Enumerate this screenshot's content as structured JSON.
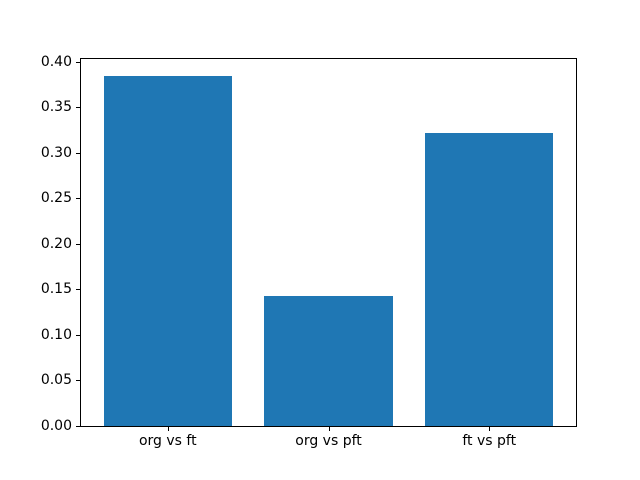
{
  "chart_data": {
    "type": "bar",
    "categories": [
      "org vs ft",
      "org vs pft",
      "ft vs pft"
    ],
    "values": [
      0.384,
      0.143,
      0.322
    ],
    "title": "",
    "xlabel": "",
    "ylabel": "",
    "ylim": [
      0,
      0.4032
    ],
    "xlim": [
      -0.54,
      2.54
    ],
    "yticks": [
      0.0,
      0.05,
      0.1,
      0.15,
      0.2,
      0.25,
      0.3,
      0.35,
      0.4
    ],
    "ytick_labels": [
      "0.00",
      "0.05",
      "0.10",
      "0.15",
      "0.20",
      "0.25",
      "0.30",
      "0.35",
      "0.40"
    ],
    "bar_color": "#1f77b4",
    "bar_width_fraction": 0.8,
    "spine_color": "#000000",
    "background_color": "#ffffff",
    "grid": false,
    "legend": null
  }
}
